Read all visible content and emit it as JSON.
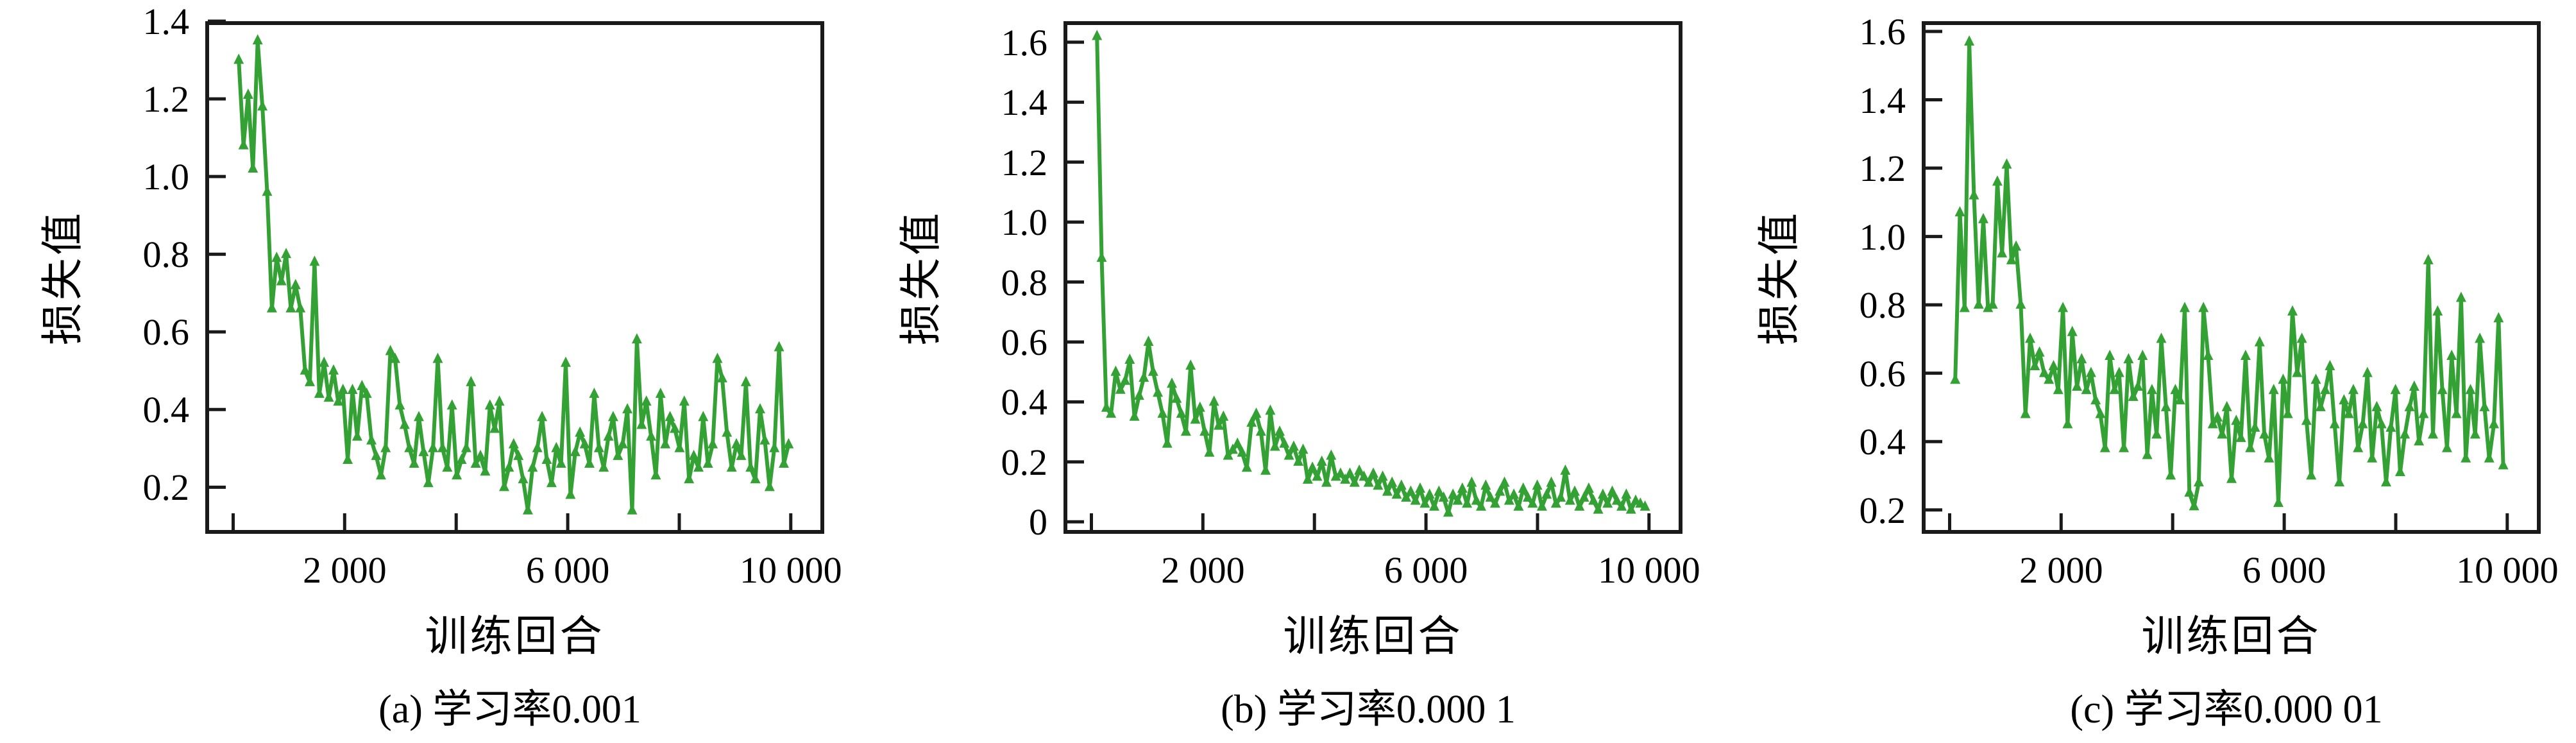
{
  "figure": {
    "background": "#ffffff",
    "line_color": "#33a133",
    "axis_color": "#1a1a1a",
    "text_color": "#000000",
    "marker": "triangle-up"
  },
  "chart_data": [
    {
      "type": "line",
      "title": "(a) 学习率0.001",
      "xlabel": "训练回合",
      "ylabel": "损失值",
      "marker": "triangle-up",
      "grid": false,
      "legend": "none",
      "xlim": [
        -500,
        10600
      ],
      "ylim": [
        0.08,
        1.4
      ],
      "xtick_values": [
        0,
        2000,
        4000,
        6000,
        8000,
        10000
      ],
      "xtick_labels": [
        "",
        "2 000",
        "",
        "6 000",
        "",
        "10 000"
      ],
      "ytick_values": [
        0.2,
        0.4,
        0.6,
        0.8,
        1.0,
        1.2,
        1.4
      ],
      "ytick_labels": [
        "0.2",
        "0.4",
        "0.6",
        "0.8",
        "1.0",
        "1.2",
        "1.4"
      ],
      "x": [
        100,
        185,
        270,
        355,
        440,
        525,
        610,
        695,
        780,
        865,
        950,
        1035,
        1120,
        1205,
        1290,
        1375,
        1460,
        1545,
        1630,
        1715,
        1800,
        1885,
        1970,
        2055,
        2140,
        2225,
        2310,
        2395,
        2480,
        2565,
        2650,
        2735,
        2820,
        2905,
        2990,
        3075,
        3160,
        3245,
        3330,
        3415,
        3500,
        3585,
        3670,
        3755,
        3840,
        3925,
        4010,
        4095,
        4180,
        4265,
        4350,
        4435,
        4520,
        4605,
        4690,
        4775,
        4860,
        4945,
        5030,
        5115,
        5200,
        5285,
        5370,
        5455,
        5540,
        5625,
        5710,
        5795,
        5880,
        5965,
        6050,
        6135,
        6220,
        6305,
        6390,
        6475,
        6560,
        6645,
        6730,
        6815,
        6900,
        6985,
        7070,
        7155,
        7240,
        7325,
        7410,
        7495,
        7580,
        7665,
        7750,
        7835,
        7920,
        8005,
        8090,
        8175,
        8260,
        8345,
        8430,
        8515,
        8600,
        8685,
        8770,
        8855,
        8940,
        9025,
        9110,
        9195,
        9280,
        9365,
        9450,
        9535,
        9620,
        9705,
        9790,
        9875,
        9960
      ],
      "values": [
        1.3,
        1.08,
        1.21,
        1.02,
        1.35,
        1.18,
        0.96,
        0.66,
        0.79,
        0.73,
        0.8,
        0.66,
        0.72,
        0.66,
        0.5,
        0.47,
        0.78,
        0.44,
        0.52,
        0.43,
        0.5,
        0.42,
        0.45,
        0.27,
        0.45,
        0.33,
        0.46,
        0.44,
        0.32,
        0.28,
        0.23,
        0.3,
        0.55,
        0.53,
        0.41,
        0.36,
        0.3,
        0.26,
        0.38,
        0.29,
        0.21,
        0.3,
        0.53,
        0.3,
        0.25,
        0.41,
        0.23,
        0.27,
        0.3,
        0.47,
        0.26,
        0.28,
        0.24,
        0.41,
        0.35,
        0.42,
        0.2,
        0.25,
        0.31,
        0.28,
        0.22,
        0.14,
        0.25,
        0.3,
        0.38,
        0.27,
        0.21,
        0.3,
        0.26,
        0.52,
        0.18,
        0.29,
        0.34,
        0.31,
        0.26,
        0.44,
        0.3,
        0.25,
        0.33,
        0.38,
        0.28,
        0.31,
        0.4,
        0.14,
        0.58,
        0.36,
        0.42,
        0.33,
        0.23,
        0.44,
        0.31,
        0.38,
        0.35,
        0.3,
        0.42,
        0.22,
        0.28,
        0.25,
        0.38,
        0.26,
        0.31,
        0.53,
        0.48,
        0.34,
        0.25,
        0.31,
        0.28,
        0.47,
        0.25,
        0.22,
        0.4,
        0.32,
        0.2,
        0.3,
        0.56,
        0.26,
        0.31
      ]
    },
    {
      "type": "line",
      "title": "(b) 学习率0.000 1",
      "xlabel": "训练回合",
      "ylabel": "损失值",
      "marker": "triangle-up",
      "grid": false,
      "legend": "none",
      "xlim": [
        -500,
        10600
      ],
      "ylim": [
        -0.04,
        1.67
      ],
      "xtick_values": [
        0,
        2000,
        4000,
        6000,
        8000,
        10000
      ],
      "xtick_labels": [
        "",
        "2 000",
        "",
        "6 000",
        "",
        "10 000"
      ],
      "ytick_values": [
        0,
        0.2,
        0.4,
        0.6,
        0.8,
        1.0,
        1.2,
        1.4,
        1.6
      ],
      "ytick_labels": [
        "0",
        "0.2",
        "0.4",
        "0.6",
        "0.8",
        "1.0",
        "1.2",
        "1.4",
        "1.6"
      ],
      "x": [
        100,
        184,
        268,
        352,
        436,
        520,
        604,
        688,
        772,
        856,
        940,
        1024,
        1108,
        1192,
        1276,
        1360,
        1444,
        1528,
        1612,
        1696,
        1780,
        1864,
        1948,
        2032,
        2116,
        2200,
        2284,
        2368,
        2452,
        2536,
        2620,
        2704,
        2788,
        2872,
        2956,
        3040,
        3124,
        3208,
        3292,
        3376,
        3460,
        3544,
        3628,
        3712,
        3796,
        3880,
        3964,
        4048,
        4132,
        4216,
        4300,
        4384,
        4468,
        4552,
        4636,
        4720,
        4804,
        4888,
        4972,
        5056,
        5140,
        5224,
        5308,
        5392,
        5476,
        5560,
        5644,
        5728,
        5812,
        5896,
        5980,
        6064,
        6148,
        6232,
        6316,
        6400,
        6484,
        6568,
        6652,
        6736,
        6820,
        6904,
        6988,
        7072,
        7156,
        7240,
        7324,
        7408,
        7492,
        7576,
        7660,
        7744,
        7828,
        7912,
        7996,
        8080,
        8164,
        8248,
        8332,
        8416,
        8500,
        8584,
        8668,
        8752,
        8836,
        8920,
        9004,
        9088,
        9172,
        9256,
        9340,
        9424,
        9508,
        9592,
        9676,
        9760,
        9844,
        9928
      ],
      "values": [
        1.62,
        0.88,
        0.38,
        0.36,
        0.5,
        0.44,
        0.47,
        0.54,
        0.35,
        0.42,
        0.48,
        0.6,
        0.5,
        0.43,
        0.36,
        0.26,
        0.46,
        0.41,
        0.36,
        0.3,
        0.52,
        0.34,
        0.38,
        0.3,
        0.23,
        0.4,
        0.32,
        0.35,
        0.22,
        0.24,
        0.26,
        0.23,
        0.18,
        0.33,
        0.36,
        0.3,
        0.17,
        0.37,
        0.25,
        0.3,
        0.26,
        0.22,
        0.25,
        0.2,
        0.24,
        0.14,
        0.18,
        0.15,
        0.2,
        0.13,
        0.22,
        0.15,
        0.16,
        0.14,
        0.16,
        0.13,
        0.17,
        0.15,
        0.13,
        0.16,
        0.12,
        0.15,
        0.1,
        0.13,
        0.09,
        0.12,
        0.08,
        0.1,
        0.07,
        0.11,
        0.06,
        0.09,
        0.05,
        0.1,
        0.08,
        0.03,
        0.09,
        0.07,
        0.11,
        0.06,
        0.13,
        0.07,
        0.05,
        0.12,
        0.08,
        0.06,
        0.1,
        0.13,
        0.07,
        0.09,
        0.05,
        0.11,
        0.08,
        0.06,
        0.12,
        0.05,
        0.09,
        0.13,
        0.06,
        0.08,
        0.17,
        0.07,
        0.1,
        0.05,
        0.08,
        0.11,
        0.07,
        0.04,
        0.09,
        0.06,
        0.1,
        0.07,
        0.05,
        0.09,
        0.04,
        0.07,
        0.06,
        0.05
      ]
    },
    {
      "type": "line",
      "title": "(c) 学习率0.000 01",
      "xlabel": "训练回合",
      "ylabel": "损失值",
      "marker": "triangle-up",
      "grid": false,
      "legend": "none",
      "xlim": [
        -500,
        10600
      ],
      "ylim": [
        0.13,
        1.63
      ],
      "xtick_values": [
        0,
        2000,
        4000,
        6000,
        8000,
        10000
      ],
      "xtick_labels": [
        "",
        "2 000",
        "",
        "6 000",
        "",
        "10 000"
      ],
      "ytick_values": [
        0.2,
        0.4,
        0.6,
        0.8,
        1.0,
        1.2,
        1.4,
        1.6
      ],
      "ytick_labels": [
        "0.2",
        "0.4",
        "0.6",
        "0.8",
        "1.0",
        "1.2",
        "1.4",
        "1.6"
      ],
      "x": [
        100,
        184,
        268,
        352,
        436,
        520,
        604,
        688,
        772,
        856,
        940,
        1024,
        1108,
        1192,
        1276,
        1360,
        1444,
        1528,
        1612,
        1696,
        1780,
        1864,
        1948,
        2032,
        2116,
        2200,
        2284,
        2368,
        2452,
        2536,
        2620,
        2704,
        2788,
        2872,
        2956,
        3040,
        3124,
        3208,
        3292,
        3376,
        3460,
        3544,
        3628,
        3712,
        3796,
        3880,
        3964,
        4048,
        4132,
        4216,
        4300,
        4384,
        4468,
        4552,
        4636,
        4720,
        4804,
        4888,
        4972,
        5056,
        5140,
        5224,
        5308,
        5392,
        5476,
        5560,
        5644,
        5728,
        5812,
        5896,
        5980,
        6064,
        6148,
        6232,
        6316,
        6400,
        6484,
        6568,
        6652,
        6736,
        6820,
        6904,
        6988,
        7072,
        7156,
        7240,
        7324,
        7408,
        7492,
        7576,
        7660,
        7744,
        7828,
        7912,
        7996,
        8080,
        8164,
        8248,
        8332,
        8416,
        8500,
        8584,
        8668,
        8752,
        8836,
        8920,
        9004,
        9088,
        9172,
        9256,
        9340,
        9424,
        9508,
        9592,
        9676,
        9760,
        9844,
        9928
      ],
      "values": [
        0.58,
        1.07,
        0.79,
        1.57,
        1.12,
        0.8,
        1.05,
        0.79,
        0.8,
        1.16,
        0.95,
        1.21,
        0.93,
        0.97,
        0.8,
        0.48,
        0.7,
        0.62,
        0.66,
        0.6,
        0.58,
        0.62,
        0.55,
        0.79,
        0.45,
        0.72,
        0.56,
        0.64,
        0.55,
        0.6,
        0.52,
        0.48,
        0.38,
        0.65,
        0.55,
        0.6,
        0.38,
        0.64,
        0.53,
        0.56,
        0.65,
        0.36,
        0.55,
        0.42,
        0.7,
        0.5,
        0.3,
        0.55,
        0.52,
        0.79,
        0.25,
        0.21,
        0.28,
        0.79,
        0.65,
        0.45,
        0.47,
        0.42,
        0.5,
        0.29,
        0.46,
        0.41,
        0.65,
        0.38,
        0.44,
        0.69,
        0.42,
        0.35,
        0.55,
        0.22,
        0.58,
        0.48,
        0.78,
        0.6,
        0.7,
        0.46,
        0.3,
        0.58,
        0.5,
        0.55,
        0.62,
        0.45,
        0.28,
        0.52,
        0.48,
        0.55,
        0.38,
        0.45,
        0.6,
        0.35,
        0.5,
        0.45,
        0.28,
        0.44,
        0.55,
        0.31,
        0.42,
        0.5,
        0.56,
        0.4,
        0.48,
        0.93,
        0.42,
        0.78,
        0.55,
        0.38,
        0.65,
        0.48,
        0.82,
        0.35,
        0.55,
        0.42,
        0.7,
        0.5,
        0.35,
        0.45,
        0.76,
        0.33
      ]
    }
  ]
}
